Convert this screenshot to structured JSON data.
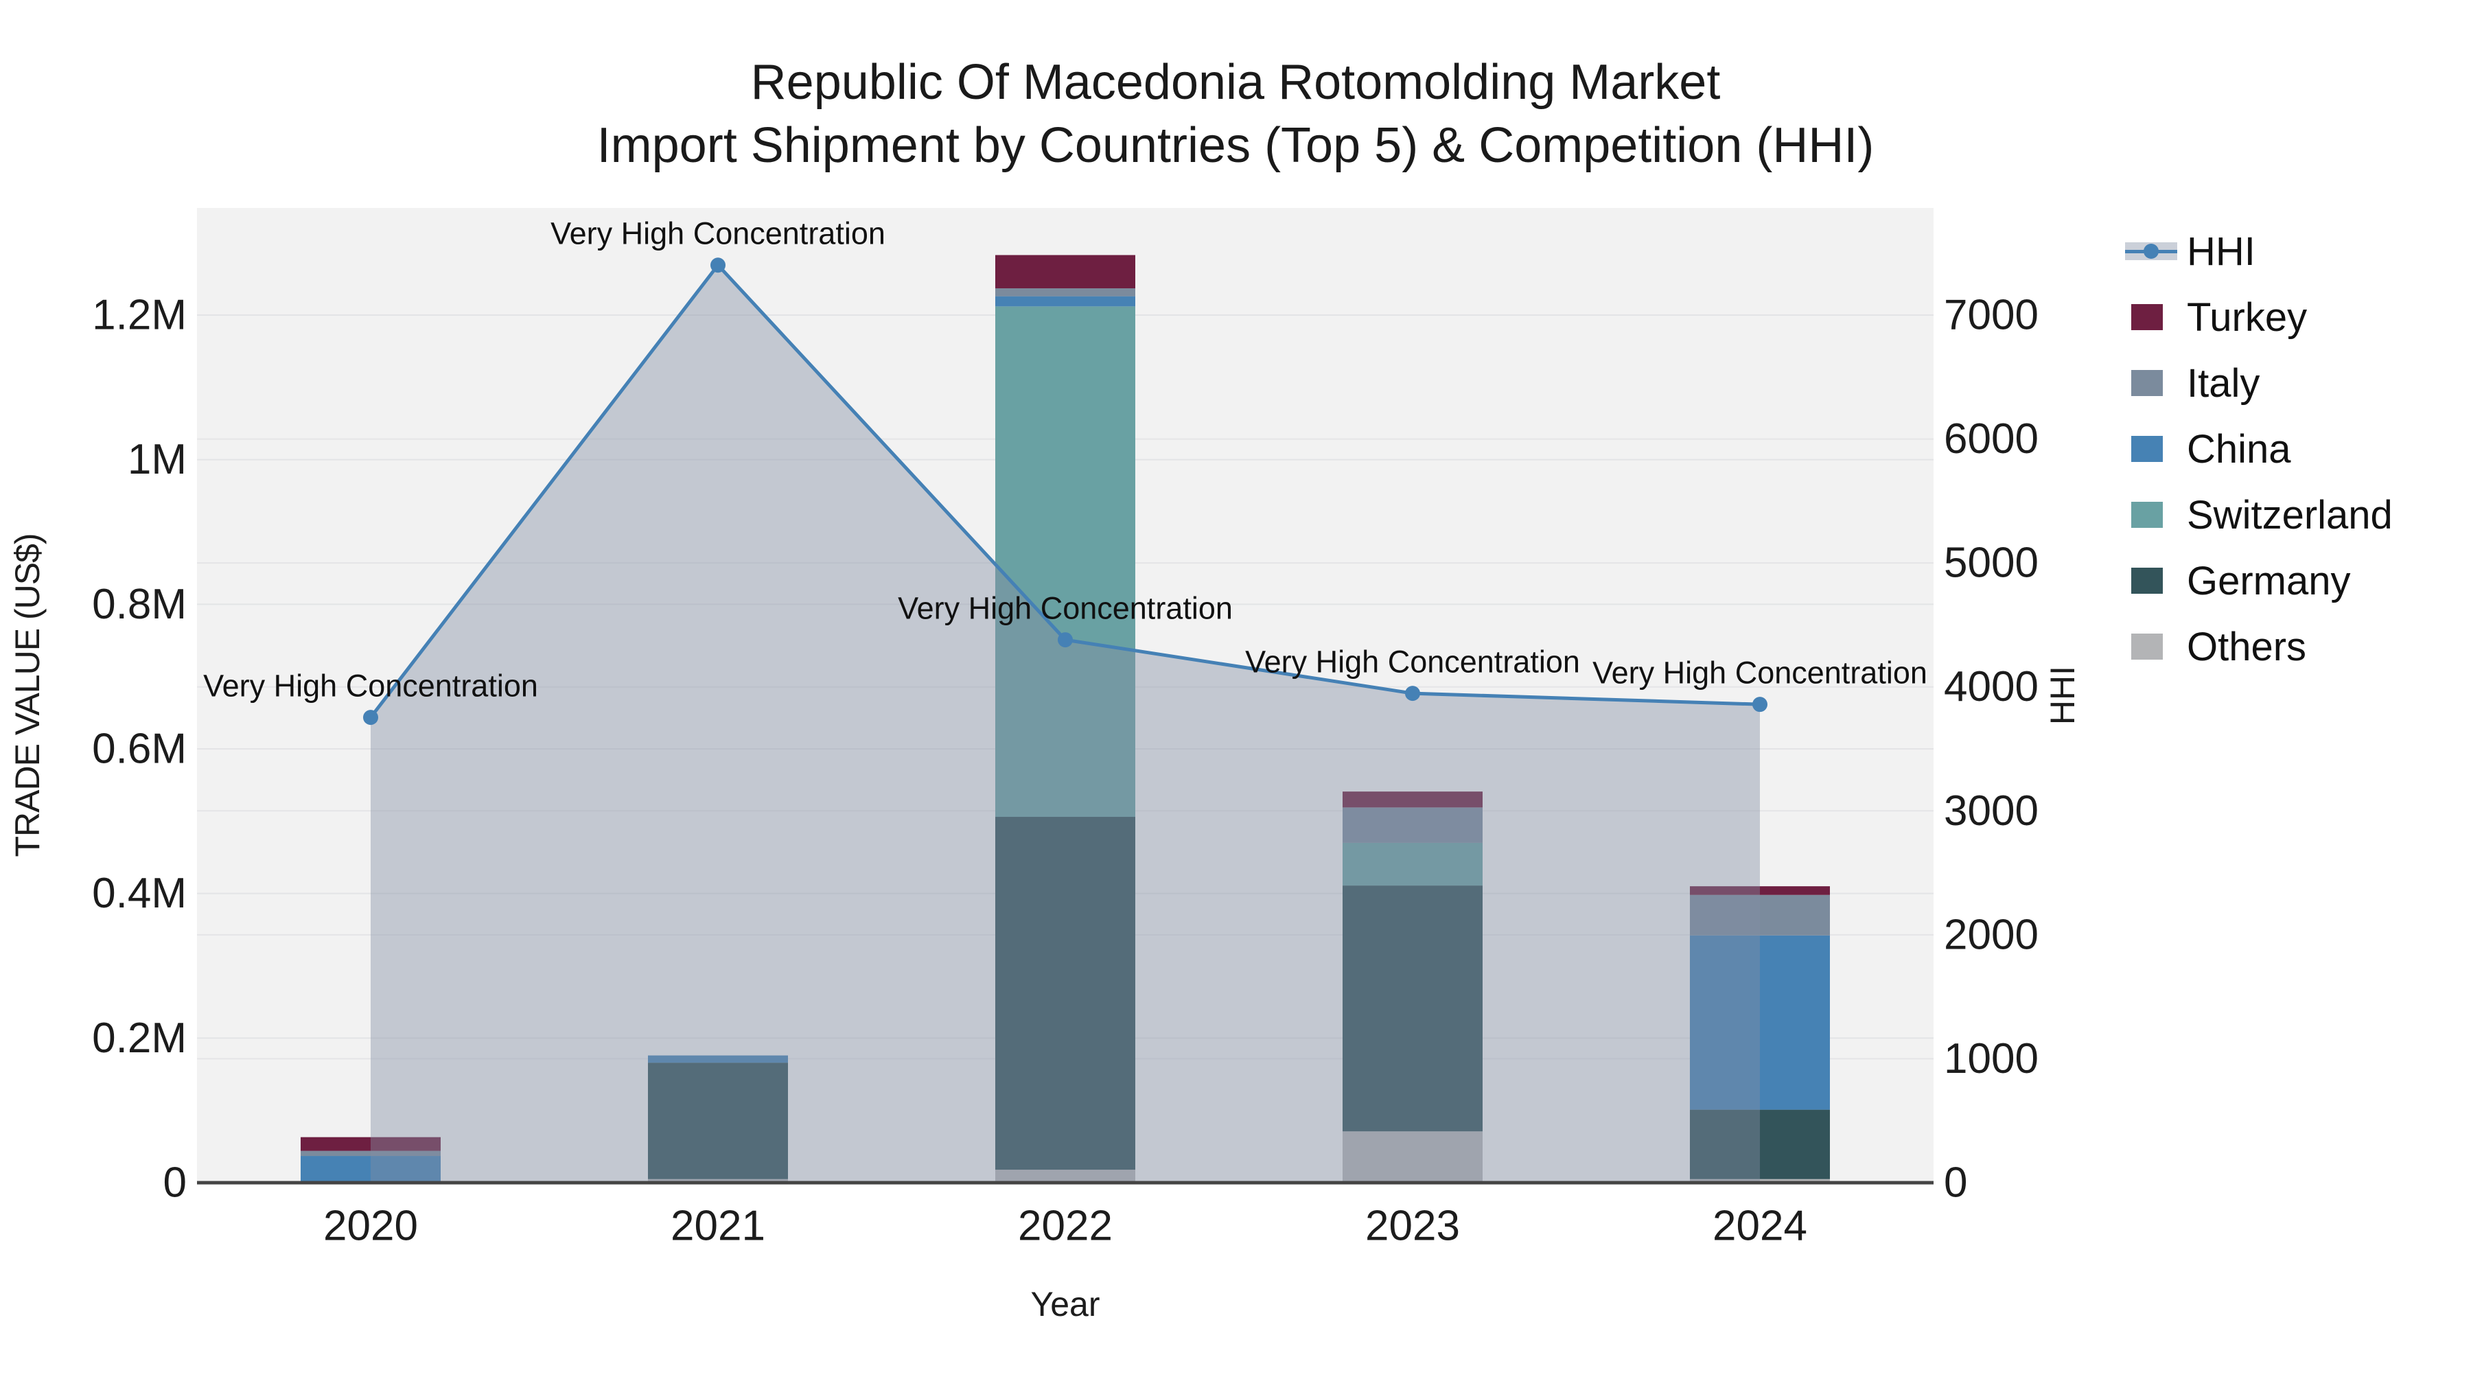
{
  "title": {
    "line1": "Republic Of Macedonia Rotomolding Market",
    "line2": "Import Shipment by Countries (Top 5) & Competition (HHI)"
  },
  "legend": {
    "items": [
      {
        "label": "HHI",
        "type": "line",
        "color": "#4581b5"
      },
      {
        "label": "Turkey",
        "type": "square",
        "color": "#6e1f41"
      },
      {
        "label": "Italy",
        "type": "square",
        "color": "#7b8b9d"
      },
      {
        "label": "China",
        "type": "square",
        "color": "#4682b4"
      },
      {
        "label": "Switzerland",
        "type": "square",
        "color": "#69a1a3"
      },
      {
        "label": "Germany",
        "type": "square",
        "color": "#33545a"
      },
      {
        "label": "Others",
        "type": "square",
        "color": "#b3b4b6"
      }
    ]
  },
  "chart_data": {
    "type": "bar",
    "subtype": "stacked-bars-with-line",
    "title": "Republic Of Macedonia Rotomolding Market — Import Shipment by Countries (Top 5) & Competition (HHI)",
    "categories": [
      "2020",
      "2021",
      "2022",
      "2023",
      "2024"
    ],
    "series": [
      {
        "name": "Turkey",
        "type": "bar",
        "color": "#6e1f41",
        "values": [
          19000,
          0,
          46000,
          22000,
          12000
        ]
      },
      {
        "name": "Italy",
        "type": "bar",
        "color": "#7b8b9d",
        "values": [
          7000,
          0,
          11000,
          49000,
          56000
        ]
      },
      {
        "name": "China",
        "type": "bar",
        "color": "#4682b4",
        "values": [
          37000,
          10000,
          14000,
          0,
          241000
        ]
      },
      {
        "name": "Switzerland",
        "type": "bar",
        "color": "#69a1a3",
        "values": [
          0,
          0,
          706000,
          59000,
          0
        ]
      },
      {
        "name": "Germany",
        "type": "bar",
        "color": "#33545a",
        "values": [
          0,
          161000,
          488000,
          340000,
          96000
        ]
      },
      {
        "name": "Others",
        "type": "bar",
        "color": "#b3b4b6",
        "values": [
          0,
          5000,
          18000,
          71000,
          5000
        ]
      }
    ],
    "stack_order_bottom_to_top": [
      "Others",
      "Germany",
      "Switzerland",
      "China",
      "Italy",
      "Turkey"
    ],
    "hhi": {
      "name": "HHI",
      "type": "line",
      "color": "#4581b5",
      "fill": "rgba(130,142,165,0.42)",
      "values": [
        3754,
        7403,
        4380,
        3948,
        3859
      ],
      "annotations": [
        "Very High Concentration",
        "Very High Concentration",
        "Very High Concentration",
        "Very High Concentration",
        "Very High Concentration"
      ]
    },
    "left_axis": {
      "title": "TRADE VALUE (US$)",
      "ticks": [
        "0",
        "0.2M",
        "0.4M",
        "0.6M",
        "0.8M",
        "1M",
        "1.2M"
      ],
      "tick_values": [
        0,
        200000,
        400000,
        600000,
        800000,
        1000000,
        1200000
      ],
      "range": [
        0,
        1200000
      ],
      "grid": true
    },
    "right_axis": {
      "title": "HHI",
      "ticks": [
        "0",
        "1000",
        "2000",
        "3000",
        "4000",
        "5000",
        "6000",
        "7000"
      ],
      "tick_values": [
        0,
        1000,
        2000,
        3000,
        4000,
        5000,
        6000,
        7000
      ],
      "range": [
        0,
        7000
      ],
      "grid": true
    },
    "x_axis": {
      "title": "Year",
      "legend_position": "right"
    },
    "plot_background": "#f2f2f2"
  }
}
